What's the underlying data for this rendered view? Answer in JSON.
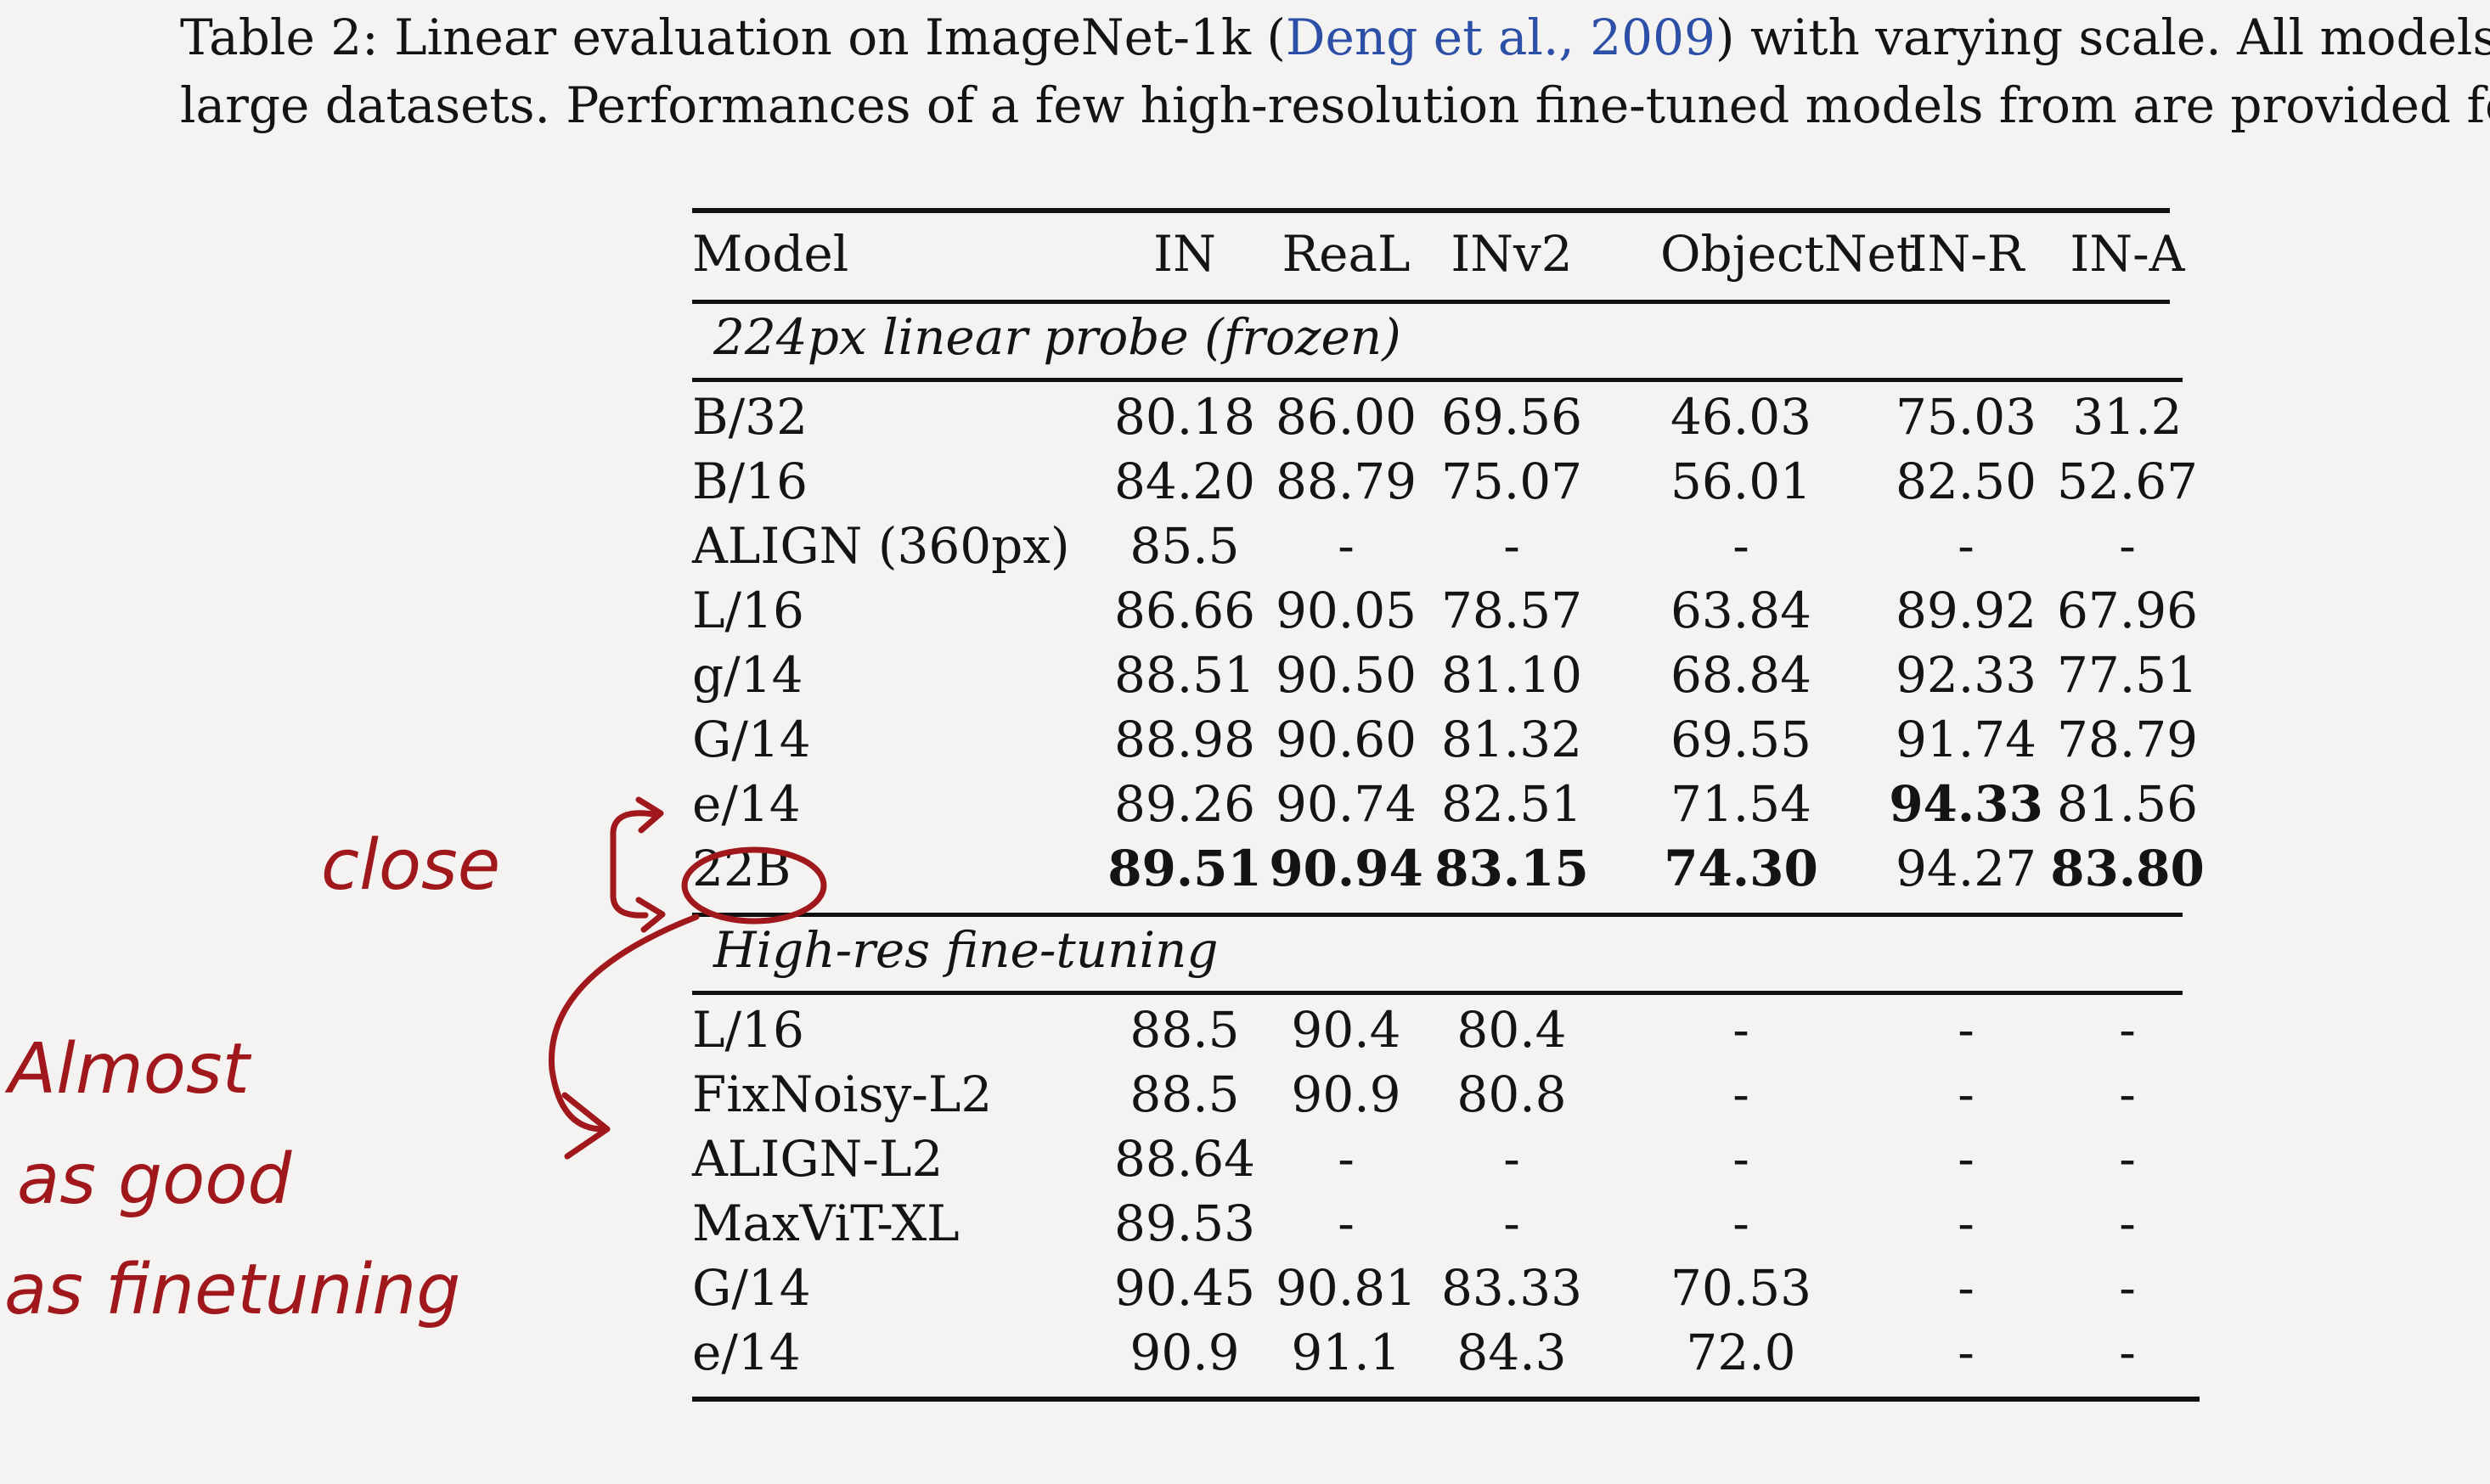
{
  "caption": {
    "line1_prefix": "Table 2: Linear evaluation on ImageNet-1k (",
    "line1_cite": "Deng et al., 2009",
    "line1_suffix": ") with varying scale. All models pre-tra",
    "line2": "large datasets. Performances of a few high-resolution fine-tuned models from are provided for refe"
  },
  "table": {
    "headers": [
      "Model",
      "IN",
      "ReaL",
      "INv2",
      "ObjectNet",
      "IN-R",
      "IN-A"
    ],
    "sections": [
      {
        "title": "224px linear probe (frozen)",
        "rows": [
          {
            "model": "B/32",
            "values": [
              "80.18",
              "86.00",
              "69.56",
              "46.03",
              "75.03",
              "31.2"
            ],
            "bold": []
          },
          {
            "model": "B/16",
            "values": [
              "84.20",
              "88.79",
              "75.07",
              "56.01",
              "82.50",
              "52.67"
            ],
            "bold": []
          },
          {
            "model": "ALIGN (360px)",
            "values": [
              "85.5",
              "-",
              "-",
              "-",
              "-",
              "-"
            ],
            "bold": []
          },
          {
            "model": "L/16",
            "values": [
              "86.66",
              "90.05",
              "78.57",
              "63.84",
              "89.92",
              "67.96"
            ],
            "bold": []
          },
          {
            "model": "g/14",
            "values": [
              "88.51",
              "90.50",
              "81.10",
              "68.84",
              "92.33",
              "77.51"
            ],
            "bold": []
          },
          {
            "model": "G/14",
            "values": [
              "88.98",
              "90.60",
              "81.32",
              "69.55",
              "91.74",
              "78.79"
            ],
            "bold": []
          },
          {
            "model": "e/14",
            "values": [
              "89.26",
              "90.74",
              "82.51",
              "71.54",
              "94.33",
              "81.56"
            ],
            "bold": [
              4
            ]
          },
          {
            "model": "22B",
            "values": [
              "89.51",
              "90.94",
              "83.15",
              "74.30",
              "94.27",
              "83.80"
            ],
            "bold": [
              0,
              1,
              2,
              3,
              5
            ]
          }
        ]
      },
      {
        "title": "High-res fine-tuning",
        "rows": [
          {
            "model": "L/16",
            "values": [
              "88.5",
              "90.4",
              "80.4",
              "-",
              "-",
              "-"
            ],
            "bold": []
          },
          {
            "model": "FixNoisy-L2",
            "values": [
              "88.5",
              "90.9",
              "80.8",
              "-",
              "-",
              "-"
            ],
            "bold": []
          },
          {
            "model": "ALIGN-L2",
            "values": [
              "88.64",
              "-",
              "-",
              "-",
              "-",
              "-"
            ],
            "bold": []
          },
          {
            "model": "MaxViT-XL",
            "values": [
              "89.53",
              "-",
              "-",
              "-",
              "-",
              "-"
            ],
            "bold": []
          },
          {
            "model": "G/14",
            "values": [
              "90.45",
              "90.81",
              "83.33",
              "70.53",
              "-",
              "-"
            ],
            "bold": []
          },
          {
            "model": "e/14",
            "values": [
              "90.9",
              "91.1",
              "84.3",
              "72.0",
              "-",
              "-"
            ],
            "bold": []
          }
        ]
      }
    ]
  },
  "annotations": {
    "close": "close",
    "almost_line1": "Almost",
    "almost_line2": "as   good",
    "almost_line3": "as   finetuning",
    "ink_color": "#a0181c"
  }
}
